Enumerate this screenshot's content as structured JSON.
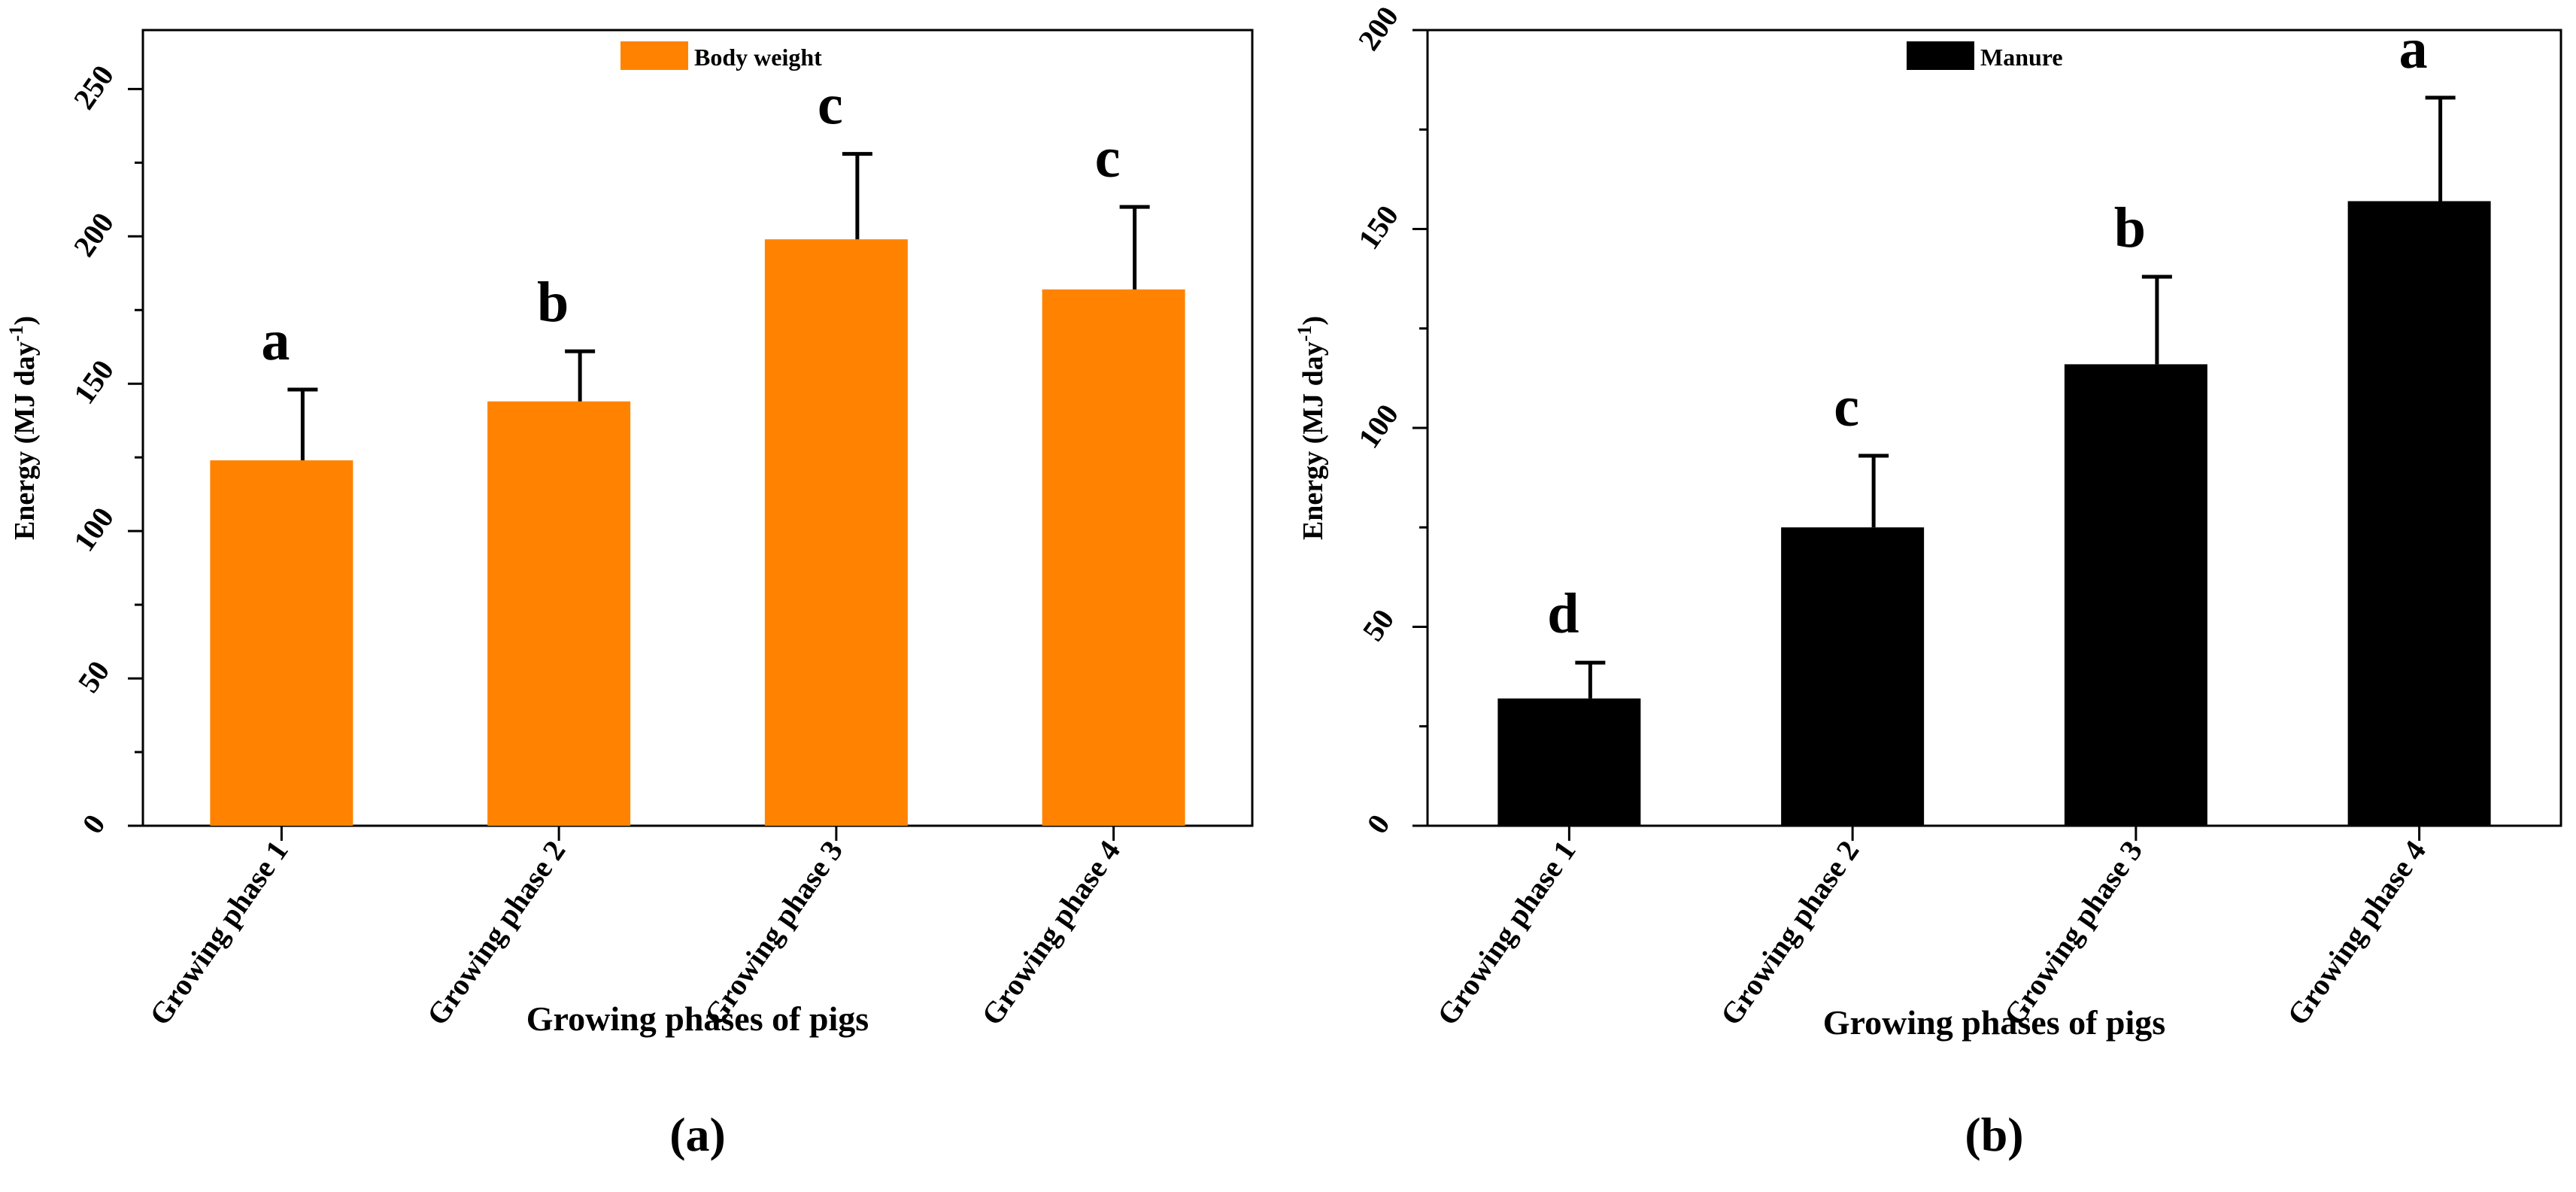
{
  "chart_data": [
    {
      "type": "bar",
      "panel_label": "(a)",
      "categories": [
        "Growing phase 1",
        "Growing phase 2",
        "Growing phase 3",
        "Growing phase 4"
      ],
      "series": [
        {
          "name": "Body weight",
          "color": "#FF8300",
          "values": [
            124,
            144,
            199,
            182
          ],
          "errors": [
            24,
            17,
            29,
            28
          ]
        }
      ],
      "significance": [
        "a",
        "b",
        "c",
        "c"
      ],
      "xlabel": "Growing phases of pigs",
      "ylabel": "Energy (MJ day",
      "ylabel_superscript": "-1",
      "ylabel_close": ")",
      "ylim": [
        0,
        270
      ],
      "yticks": [
        0,
        50,
        100,
        150,
        200,
        250
      ],
      "yticks_minor_step": 25,
      "legend_position": "top-center",
      "grid": false
    },
    {
      "type": "bar",
      "panel_label": "(b)",
      "categories": [
        "Growing phase 1",
        "Growing phase 2",
        "Growing phase 3",
        "Growing phase 4"
      ],
      "series": [
        {
          "name": "Manure",
          "color": "#000000",
          "values": [
            32,
            75,
            116,
            157
          ],
          "errors": [
            9,
            18,
            22,
            26
          ]
        }
      ],
      "significance": [
        "d",
        "c",
        "b",
        "a"
      ],
      "xlabel": "Growing phases of pigs",
      "ylabel": "Energy (MJ day",
      "ylabel_superscript": "-1",
      "ylabel_close": ")",
      "ylim": [
        0,
        200
      ],
      "yticks": [
        0,
        50,
        100,
        150,
        200
      ],
      "yticks_minor_step": 25,
      "legend_position": "top-center",
      "grid": false
    }
  ]
}
